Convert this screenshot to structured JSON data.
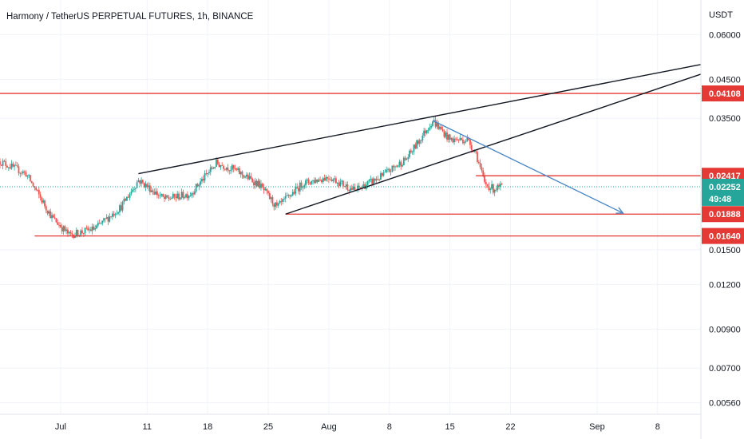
{
  "header": {
    "title": "Harmony / TetherUS PERPETUAL FUTURES, 1h, BINANCE"
  },
  "colors": {
    "up": "#26a69a",
    "down": "#ef5350",
    "level_line": "#e53935",
    "trend_line": "#131722",
    "arrow_line": "#4a86c5",
    "last_price": "#26a69a",
    "grid": "#f0f3fa"
  },
  "chart_data": {
    "type": "candlestick",
    "title": "Harmony / TetherUS PERPETUAL FUTURES, 1h, BINANCE",
    "y_unit": "USDT",
    "y_scale": "log",
    "ylim": [
      0.0052,
      0.075
    ],
    "y_ticks": [
      0.06,
      0.045,
      0.035,
      0.015,
      0.012,
      0.009,
      0.007,
      0.0056
    ],
    "y_tick_labels": [
      "0.06000",
      "0.04500",
      "0.03500",
      "0.01500",
      "0.01200",
      "0.00900",
      "0.00700",
      "0.00560"
    ],
    "x_tick_labels": [
      "Jul",
      "11",
      "18",
      "25",
      "Aug",
      "8",
      "15",
      "22",
      "Sep",
      "8"
    ],
    "x_range": [
      "2022-06-24",
      "2022-09-13"
    ],
    "x_ticks": [
      "2022-07-01",
      "2022-07-11",
      "2022-07-18",
      "2022-07-25",
      "2022-08-01",
      "2022-08-08",
      "2022-08-15",
      "2022-08-22",
      "2022-09-01",
      "2022-09-08"
    ],
    "grid": true,
    "price_path": {
      "dates": [
        "2022-06-24",
        "2022-06-27",
        "2022-06-30",
        "2022-07-02",
        "2022-07-05",
        "2022-07-08",
        "2022-07-10",
        "2022-07-13",
        "2022-07-16",
        "2022-07-19",
        "2022-07-21",
        "2022-07-24",
        "2022-07-26",
        "2022-07-29",
        "2022-08-01",
        "2022-08-04",
        "2022-08-07",
        "2022-08-10",
        "2022-08-13",
        "2022-08-15",
        "2022-08-17",
        "2022-08-18",
        "2022-08-19",
        "2022-08-20",
        "2022-08-21"
      ],
      "prices": [
        0.0265,
        0.0245,
        0.0185,
        0.0165,
        0.0172,
        0.0198,
        0.0235,
        0.0208,
        0.0215,
        0.0262,
        0.0252,
        0.0228,
        0.0197,
        0.023,
        0.024,
        0.022,
        0.024,
        0.027,
        0.0345,
        0.0305,
        0.0305,
        0.028,
        0.023,
        0.0222,
        0.0225
      ]
    },
    "horizontal_levels": [
      {
        "value": 0.04108,
        "label": "0.04108",
        "from": "2022-06-24"
      },
      {
        "value": 0.02417,
        "label": "0.02417",
        "from": "2022-08-18"
      },
      {
        "value": 0.01888,
        "label": "0.01888",
        "from": "2022-07-27"
      },
      {
        "value": 0.0164,
        "label": "0.01640",
        "from": "2022-06-28"
      }
    ],
    "trend_lines": [
      {
        "x1": "2022-07-10",
        "y1": 0.0245,
        "x2": "2022-09-13",
        "y2": 0.0495
      },
      {
        "x1": "2022-07-27",
        "y1": 0.01888,
        "x2": "2022-09-13",
        "y2": 0.0465
      }
    ],
    "arrow": {
      "x1": "2022-08-13",
      "y1": 0.0345,
      "x2": "2022-09-04",
      "y2": 0.019
    },
    "last_price": {
      "value": 0.02252,
      "label": "0.02252",
      "countdown": "49:48"
    }
  }
}
